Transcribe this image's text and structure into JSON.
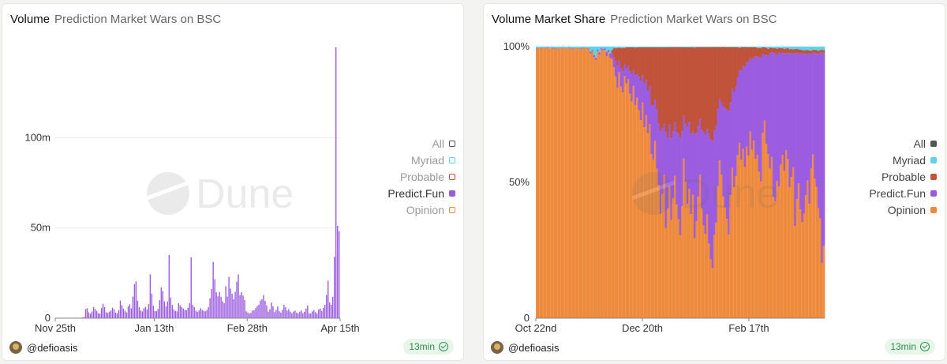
{
  "colors": {
    "all": "#555555",
    "myriad": "#5fd3e8",
    "probable": "#c0533a",
    "predict_fun": "#9b5ce0",
    "opinion": "#ee8a3d"
  },
  "watermark": "Dune",
  "left_card": {
    "title": "Volume",
    "subtitle": "Prediction Market Wars on BSC",
    "legend": [
      {
        "name": "All",
        "color": "#555555"
      },
      {
        "name": "Myriad",
        "color": "#5fd3e8"
      },
      {
        "name": "Probable",
        "color": "#c0533a"
      },
      {
        "name": "Predict.Fun",
        "color": "#9b5ce0"
      },
      {
        "name": "Opinion",
        "color": "#ee8a3d"
      }
    ],
    "author": "@defioasis",
    "refresh": "13min"
  },
  "right_card": {
    "title": "Volume Market Share",
    "subtitle": "Prediction Market Wars on BSC",
    "legend": [
      {
        "name": "All",
        "color": "#555555"
      },
      {
        "name": "Myriad",
        "color": "#5fd3e8"
      },
      {
        "name": "Probable",
        "color": "#c0533a"
      },
      {
        "name": "Predict.Fun",
        "color": "#9b5ce0"
      },
      {
        "name": "Opinion",
        "color": "#ee8a3d"
      }
    ],
    "author": "@defioasis",
    "refresh": "13min"
  },
  "chart_data": [
    {
      "type": "bar",
      "title": "Volume",
      "subtitle": "Prediction Market Wars on BSC",
      "series_name": "Predict.Fun",
      "x_tick_labels": [
        "Nov 25th",
        "Jan 13th",
        "Feb 28th",
        "Apr 15th"
      ],
      "x_tick_day_index": [
        0,
        49,
        95,
        141
      ],
      "y_tick_labels": [
        "0",
        "50m",
        "100m"
      ],
      "y_ticks": [
        0,
        50000000,
        100000000
      ],
      "ylim": [
        0,
        150000000
      ],
      "values_millions": [
        0.1,
        0.1,
        0.2,
        0.1,
        0.1,
        0.2,
        0.1,
        0.1,
        0.2,
        0.1,
        0.1,
        0.2,
        0.1,
        0.3,
        0.1,
        0.2,
        0.3,
        0.4,
        0.8,
        5.1,
        5.5,
        3.2,
        2.5,
        3.7,
        6.2,
        5.1,
        4.0,
        2.8,
        2.5,
        5.6,
        8.0,
        6.1,
        3.3,
        2.9,
        3.6,
        4.2,
        5.8,
        5.0,
        3.1,
        2.7,
        4.4,
        9.8,
        7.2,
        5.3,
        4.1,
        3.2,
        6.6,
        7.7,
        5.4,
        12.0,
        18.9,
        20.4,
        9.7,
        6.1,
        4.3,
        3.8,
        5.5,
        6.2,
        4.9,
        7.8,
        24.3,
        13.6,
        6.9,
        3.9,
        4.0,
        5.1,
        10.0,
        17.1,
        15.0,
        9.4,
        6.5,
        9.2,
        35.0,
        11.4,
        7.4,
        4.9,
        4.1,
        3.8,
        8.3,
        7.1,
        6.2,
        5.4,
        4.6,
        4.5,
        5.8,
        8.4,
        33.7,
        7.4,
        6.1,
        4.2,
        3.5,
        4.2,
        5.6,
        4.5,
        4.1,
        3.8,
        4.6,
        6.2,
        11.0,
        16.2,
        31.2,
        21.6,
        14.3,
        12.1,
        14.5,
        11.9,
        9.4,
        8.3,
        17.7,
        12.0,
        22.9,
        16.4,
        13.6,
        10.5,
        14.6,
        20.2,
        24.3,
        12.8,
        14.4,
        12.5,
        10.1,
        3.8,
        3.2,
        2.6,
        3.1,
        4.3,
        4.4,
        5.6,
        6.8,
        7.4,
        9.8,
        10.5,
        12.8,
        9.6,
        7.1,
        3.6,
        4.9,
        8.7,
        6.6,
        3.4,
        4.6,
        6.5,
        3.8,
        3.1,
        4.6,
        7.4,
        6.1,
        4.2,
        5.0,
        3.6,
        2.8,
        3.6,
        4.2,
        3.1,
        2.6,
        3.6,
        4.3,
        2.8,
        3.5,
        5.3,
        7.1,
        2.6,
        2.7,
        3.8,
        4.5,
        3.3,
        2.6,
        4.8,
        5.4,
        4.0,
        5.8,
        7.5,
        12.9,
        20.8,
        8.8,
        7.5,
        11.9,
        34.0,
        150.0,
        51.2,
        48.2
      ]
    },
    {
      "type": "area",
      "stacking": "percent",
      "title": "Volume Market Share",
      "subtitle": "Prediction Market Wars on BSC",
      "x_tick_labels": [
        "Oct 22nd",
        "Dec 20th",
        "Feb 17th"
      ],
      "x_tick_day_index": [
        0,
        59,
        118
      ],
      "y_tick_labels": [
        "0",
        "50%",
        "100%"
      ],
      "ylim": [
        0,
        100
      ],
      "series": [
        {
          "name": "Opinion",
          "color": "#ee8a3d",
          "values": [
            99.2,
            99.5,
            99.3,
            99.6,
            99.4,
            99.7,
            99.5,
            99.2,
            99.4,
            99.6,
            99.3,
            99.5,
            99.1,
            99.4,
            99.6,
            99.2,
            99.5,
            99.3,
            99.4,
            99.6,
            99.0,
            99.3,
            99.5,
            99.4,
            99.2,
            99.1,
            99.6,
            99.5,
            99.3,
            99.2,
            97.5,
            98.3,
            96.1,
            95.0,
            98.2,
            97.1,
            99.0,
            98.6,
            98.8,
            96.5,
            97.9,
            95.8,
            95.5,
            92.4,
            89.1,
            84.9,
            90.6,
            85.3,
            83.1,
            89.2,
            86.4,
            88.0,
            82.7,
            79.8,
            85.5,
            78.4,
            81.2,
            76.6,
            72.9,
            79.5,
            70.3,
            74.8,
            68.2,
            71.5,
            60.4,
            58.3,
            65.2,
            55.0,
            49.1,
            38.4,
            45.7,
            52.8,
            33.2,
            40.3,
            48.6,
            36.0,
            44.2,
            52.5,
            41.8,
            36.5,
            30.5,
            41.2,
            58.8,
            50.2,
            42.1,
            47.6,
            38.3,
            45.5,
            29.4,
            35.7,
            44.8,
            52.9,
            40.4,
            34.2,
            31.0,
            38.2,
            27.5,
            21.6,
            18.4,
            30.7,
            35.2,
            48.6,
            58.1,
            52.9,
            44.8,
            40.7,
            36.6,
            30.8,
            45.3,
            55.4,
            48.2,
            52.3,
            60.1,
            64.8,
            58.3,
            62.4,
            55.7,
            63.2,
            59.9,
            68.7,
            62.2,
            65.5,
            58.7,
            60.3,
            54.2,
            50.5,
            68.3,
            72.8,
            64.4,
            60.9,
            55.3,
            59.7,
            44.7,
            43.1,
            51.3,
            48.5,
            56.9,
            60.1,
            54.5,
            62.2,
            58.8,
            48.5,
            52.4,
            55.9,
            34.1,
            44.0,
            49.9,
            40.2,
            35.5,
            38.7,
            45.5,
            50.9,
            42.2,
            55.4,
            60.3,
            51.5,
            48.6,
            40.7,
            36.7,
            20.3,
            26.6
          ]
        },
        {
          "name": "Predict.Fun",
          "color": "#9b5ce0",
          "values": [
            0.2,
            0.1,
            0.2,
            0.1,
            0.1,
            0.1,
            0.2,
            0.1,
            0.1,
            0.1,
            0.2,
            0.1,
            0.2,
            0.1,
            0.1,
            0.2,
            0.1,
            0.1,
            0.2,
            0.1,
            0.3,
            0.2,
            0.1,
            0.1,
            0.2,
            0.3,
            0.1,
            0.1,
            0.2,
            0.2,
            0.6,
            0.5,
            0.8,
            0.9,
            0.6,
            0.8,
            0.4,
            0.5,
            0.5,
            1.6,
            0.9,
            1.8,
            2.0,
            3.6,
            5.8,
            7.9,
            4.2,
            6.7,
            7.8,
            4.3,
            5.5,
            4.9,
            8.1,
            10.2,
            5.9,
            11.1,
            8.7,
            12.3,
            14.6,
            9.8,
            16.2,
            12.9,
            15.5,
            13.8,
            18.1,
            20.0,
            15.3,
            21.9,
            22.7,
            30.4,
            24.1,
            18.6,
            35.2,
            26.1,
            22.9,
            30.2,
            24.6,
            19.5,
            26.7,
            31.4,
            35.9,
            27.6,
            15.7,
            21.6,
            28.3,
            24.7,
            29.5,
            23.2,
            38.6,
            32.4,
            25.8,
            20.4,
            29.0,
            34.4,
            36.6,
            31.7,
            40.5,
            44.2,
            46.9,
            38.3,
            35.7,
            28.4,
            22.5,
            26.6,
            33.4,
            36.7,
            40.2,
            45.4,
            34.0,
            29.2,
            35.1,
            32.9,
            28.8,
            26.5,
            33.0,
            30.4,
            36.8,
            31.0,
            34.5,
            26.9,
            33.1,
            30.5,
            37.7,
            36.5,
            42.1,
            46.2,
            28.9,
            24.3,
            32.9,
            36.5,
            42.6,
            38.8,
            53.1,
            54.8,
            46.9,
            49.4,
            41.2,
            37.6,
            43.7,
            35.8,
            39.1,
            49.6,
            45.8,
            42.2,
            63.7,
            53.9,
            48.1,
            57.6,
            62.4,
            59.1,
            52.4,
            46.6,
            55.4,
            42.3,
            37.5,
            46.2,
            49.3,
            57.1,
            60.8,
            77.5,
            70.9
          ]
        },
        {
          "name": "Probable",
          "color": "#c0533a",
          "values": [
            0,
            0,
            0,
            0,
            0,
            0,
            0,
            0,
            0,
            0,
            0,
            0,
            0,
            0,
            0,
            0,
            0,
            0,
            0,
            0,
            0,
            0,
            0,
            0,
            0,
            0,
            0,
            0,
            0,
            0,
            0,
            0,
            0,
            0,
            0,
            0,
            0,
            0,
            0,
            0,
            0,
            0,
            1.2,
            3.4,
            4.5,
            6.7,
            4.8,
            7.5,
            8.6,
            6.0,
            7.8,
            6.8,
            8.9,
            9.7,
            8.3,
            10.1,
            9.8,
            10.8,
            12.2,
            10.4,
            13.2,
            12.0,
            16.0,
            14.4,
            21.2,
            21.4,
            19.2,
            22.8,
            27.9,
            30.9,
            29.9,
            28.3,
            31.3,
            33.3,
            28.3,
            33.5,
            31.0,
            27.8,
            31.2,
            31.9,
            33.3,
            31.0,
            25.2,
            27.9,
            29.3,
            27.4,
            31.9,
            31.1,
            31.6,
            31.7,
            29.2,
            26.5,
            30.4,
            31.2,
            32.2,
            29.9,
            31.8,
            34.0,
            34.5,
            30.8,
            28.9,
            22.8,
            19.2,
            20.3,
            21.7,
            22.4,
            23.0,
            23.6,
            20.5,
            15.2,
            16.5,
            14.6,
            11.0,
            8.5,
            8.5,
            7.0,
            7.3,
            5.6,
            5.3,
            4.1,
            4.6,
            3.8,
            3.4,
            3.0,
            3.7,
            3.3,
            2.6,
            2.7,
            2.5,
            2.6,
            2.0,
            1.6,
            1.6,
            1.8,
            2.4,
            1.7,
            1.9,
            1.6,
            1.5,
            1.9,
            1.8,
            1.5,
            1.7,
            1.5,
            1.6,
            1.6,
            1.5,
            1.4,
            1.2,
            1.3,
            1.2,
            1.5,
            1.1,
            1.3,
            1.1,
            1.2,
            1.4,
            1.1,
            1.0,
            1.0,
            1.1,
            0.8,
            0.9,
            0.8,
            0.7,
            0.9,
            0.8
          ]
        },
        {
          "name": "Myriad",
          "color": "#5fd3e8",
          "values": [
            0.6,
            0.4,
            0.5,
            0.3,
            0.5,
            0.2,
            0.3,
            0.7,
            0.5,
            0.3,
            0.5,
            0.4,
            0.7,
            0.5,
            0.3,
            0.6,
            0.4,
            0.6,
            0.4,
            0.3,
            0.7,
            0.5,
            0.4,
            0.5,
            0.6,
            0.6,
            0.3,
            0.4,
            0.5,
            0.6,
            1.9,
            1.2,
            3.1,
            4.1,
            1.2,
            2.1,
            0.6,
            0.9,
            0.7,
            1.9,
            1.2,
            2.4,
            1.3,
            0.6,
            0.6,
            0.5,
            0.4,
            0.5,
            0.5,
            0.5,
            0.3,
            0.3,
            0.3,
            0.3,
            0.3,
            0.4,
            0.3,
            0.3,
            0.3,
            0.3,
            0.3,
            0.3,
            0.3,
            0.3,
            0.3,
            0.3,
            0.3,
            0.3,
            0.3,
            0.3,
            0.3,
            0.3,
            0.3,
            0.3,
            0.2,
            0.3,
            0.2,
            0.2,
            0.3,
            0.2,
            0.3,
            0.2,
            0.3,
            0.3,
            0.3,
            0.3,
            0.3,
            0.2,
            0.4,
            0.2,
            0.2,
            0.2,
            0.2,
            0.2,
            0.2,
            0.2,
            0.2,
            0.2,
            0.2,
            0.2,
            0.2,
            0.2,
            0.2,
            0.2,
            0.1,
            0.2,
            0.2,
            0.2,
            0.2,
            0.2,
            0.2,
            0.2,
            0.2,
            0.5,
            0.2,
            0.2,
            0.2,
            0.2,
            0.3,
            0.2,
            0.3,
            0.2,
            0.2,
            0.5,
            0.5,
            0.5,
            0.2,
            0.2,
            0.5,
            0.8,
            0.4,
            0.5,
            0.6,
            0.6,
            0.8,
            0.5,
            0.6,
            0.6,
            0.9,
            0.7,
            0.6,
            1.0,
            0.9,
            1.0,
            0.9,
            0.8,
            1.0,
            1.1,
            1.3,
            1.4,
            1.3,
            1.3,
            1.4,
            1.5,
            1.1,
            1.2,
            1.3,
            1.6,
            1.3,
            1.2,
            1.3,
            1.3,
            1.5,
            1.3,
            1.2,
            1.3,
            1.5,
            1.0,
            0.9,
            0.8,
            0.9,
            0.7
          ]
        }
      ]
    }
  ]
}
